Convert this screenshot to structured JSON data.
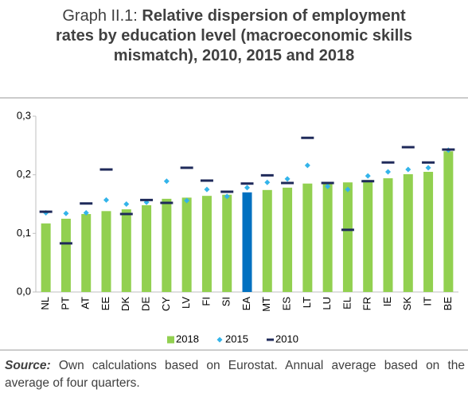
{
  "chart_data": {
    "type": "bar",
    "title_prefix": "Graph II.1:",
    "title": "Relative dispersion of employment rates by education level (macroeconomic skills mismatch), 2010, 2015 and 2018",
    "categories": [
      "NL",
      "PT",
      "AT",
      "EE",
      "DK",
      "DE",
      "CY",
      "LV",
      "FI",
      "SI",
      "EA",
      "MT",
      "ES",
      "LT",
      "LU",
      "EL",
      "FR",
      "IE",
      "SK",
      "IT",
      "BE"
    ],
    "series": [
      {
        "name": "2018",
        "mark": "bar",
        "color": "#92d050",
        "bar_colors": [
          "#92d050",
          "#92d050",
          "#92d050",
          "#92d050",
          "#92d050",
          "#92d050",
          "#92d050",
          "#92d050",
          "#92d050",
          "#92d050",
          "#0070c0",
          "#92d050",
          "#92d050",
          "#92d050",
          "#92d050",
          "#92d050",
          "#92d050",
          "#92d050",
          "#92d050",
          "#92d050",
          "#92d050"
        ],
        "values": [
          0.117,
          0.125,
          0.133,
          0.138,
          0.141,
          0.148,
          0.159,
          0.161,
          0.164,
          0.166,
          0.17,
          0.174,
          0.178,
          0.185,
          0.186,
          0.187,
          0.191,
          0.194,
          0.201,
          0.205,
          0.24
        ]
      },
      {
        "name": "2015",
        "mark": "diamond",
        "color": "#33b4ea",
        "values": [
          0.135,
          0.134,
          0.135,
          0.157,
          0.15,
          0.153,
          0.189,
          0.156,
          0.175,
          0.163,
          0.178,
          0.187,
          0.193,
          0.216,
          0.18,
          0.175,
          0.198,
          0.205,
          0.209,
          0.212,
          0.242
        ]
      },
      {
        "name": "2010",
        "mark": "dash",
        "color": "#1f2a5a",
        "values": [
          0.137,
          0.083,
          0.151,
          0.209,
          0.133,
          0.157,
          0.152,
          0.212,
          0.19,
          0.171,
          0.185,
          0.199,
          0.186,
          0.263,
          0.186,
          0.106,
          0.189,
          0.221,
          0.247,
          0.221,
          0.243
        ]
      }
    ],
    "ylim": [
      0,
      0.3
    ],
    "yticks": [
      {
        "value": 0,
        "label": "0,0"
      },
      {
        "value": 0.1,
        "label": "0,1"
      },
      {
        "value": 0.2,
        "label": "0,2"
      },
      {
        "value": 0.3,
        "label": "0,3"
      }
    ],
    "grid": false,
    "legend": "bottom",
    "source_label": "Source:",
    "source_text": "Own calculations based on Eurostat. Annual average based on the average of four quarters."
  }
}
